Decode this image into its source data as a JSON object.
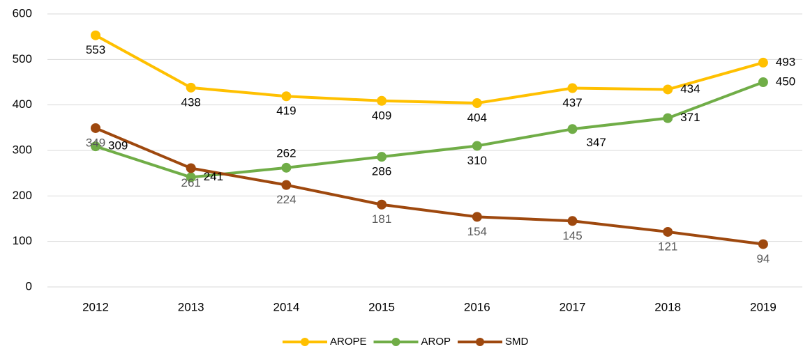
{
  "chart_data": {
    "type": "line",
    "categories": [
      "2012",
      "2013",
      "2014",
      "2015",
      "2016",
      "2017",
      "2018",
      "2019"
    ],
    "series": [
      {
        "name": "AROPE",
        "color": "#ffc000",
        "label_color": "#000000",
        "values": [
          553,
          438,
          419,
          409,
          404,
          437,
          434,
          493
        ]
      },
      {
        "name": "AROP",
        "color": "#70ad47",
        "label_color": "#000000",
        "values": [
          309,
          241,
          262,
          286,
          310,
          347,
          371,
          450
        ]
      },
      {
        "name": "SMD",
        "color": "#9e480e",
        "label_color": "#595959",
        "values": [
          349,
          261,
          224,
          181,
          154,
          145,
          121,
          94
        ]
      }
    ],
    "ylim": [
      0,
      600
    ],
    "yticks": [
      0,
      100,
      200,
      300,
      400,
      500,
      600
    ],
    "grid": true,
    "legend": "bottom"
  }
}
